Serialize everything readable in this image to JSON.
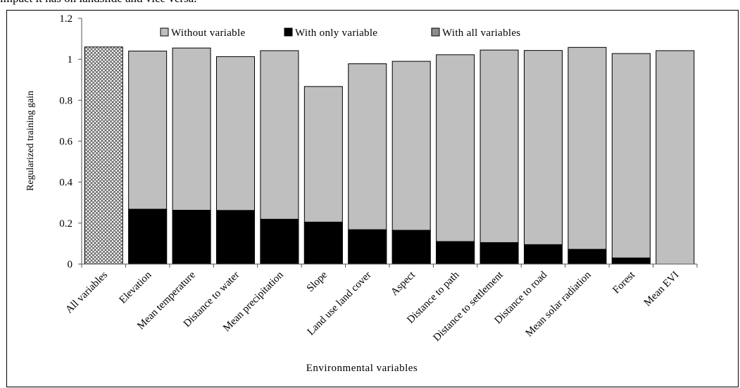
{
  "caption": "impact it has on landslide and vice versa.",
  "chart_data": {
    "type": "bar",
    "xlabel": "Environmental variables",
    "ylabel": "Regularized training gain",
    "ylim": [
      0,
      1.2
    ],
    "yticks": [
      "0",
      "0.2",
      "0.4",
      "0.6",
      "0.8",
      "1",
      "1.2"
    ],
    "grid": false,
    "legend_position": "top",
    "categories": [
      "All variables",
      "Elevation",
      "Mean temperature",
      "Distance to water",
      "Mean precipitation",
      "Slope",
      "Land use land cover",
      "Aspect",
      "Distance to path",
      "Distance to settlement",
      "Distance to road",
      "Mean solar radiation",
      "Forest",
      "Mean EVI"
    ],
    "series": [
      {
        "name": "Without variable",
        "color": "#bfbfbf",
        "values": [
          null,
          1.04,
          1.055,
          1.013,
          1.042,
          0.867,
          0.978,
          0.99,
          1.022,
          1.045,
          1.043,
          1.058,
          1.028,
          1.042
        ]
      },
      {
        "name": "With only variable",
        "color": "#000000",
        "values": [
          null,
          0.268,
          0.263,
          0.262,
          0.219,
          0.205,
          0.168,
          0.165,
          0.11,
          0.105,
          0.095,
          0.072,
          0.03,
          0.0
        ]
      },
      {
        "name": "With all variables",
        "color": "#8c8c8c",
        "pattern": "crosshatch",
        "values": [
          1.06,
          null,
          null,
          null,
          null,
          null,
          null,
          null,
          null,
          null,
          null,
          null,
          null,
          null
        ]
      }
    ]
  }
}
